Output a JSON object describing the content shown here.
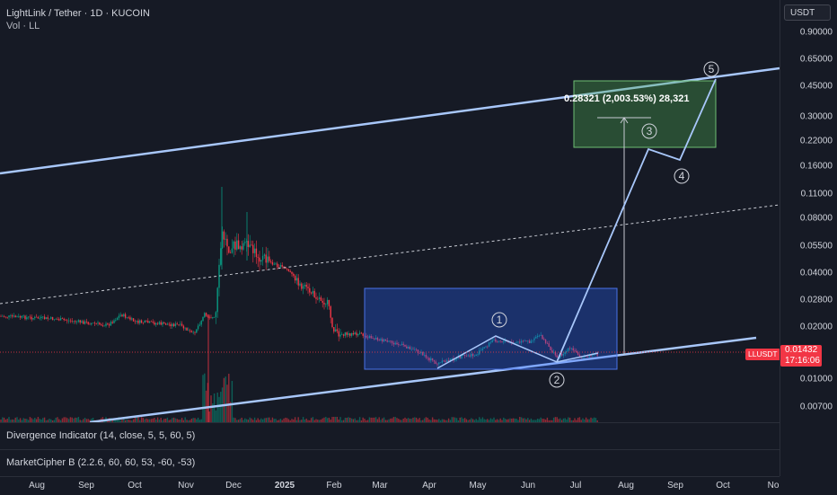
{
  "header": {
    "symbol_line": "LightLink / Tether · 1D · KUCOIN",
    "volume_line": "Vol · LL"
  },
  "price_axis": {
    "currency": "USDT",
    "ticks": [
      "0.90000",
      "0.65000",
      "0.45000",
      "0.30000",
      "0.22000",
      "0.16000",
      "0.11000",
      "0.08000",
      "0.05500",
      "0.04000",
      "0.02800",
      "0.02000",
      "0.01000",
      "0.00700"
    ],
    "last_price": "0.01432",
    "countdown": "17:16:06",
    "symbol_tag": "LLUSDT"
  },
  "time_axis": {
    "labels": [
      "Aug",
      "Sep",
      "Oct",
      "Nov",
      "Dec",
      "2025",
      "Feb",
      "Mar",
      "Apr",
      "May",
      "Jun",
      "Jul",
      "Aug",
      "Sep",
      "Oct",
      "No"
    ]
  },
  "measure": {
    "label": "0.28321 (2,003.53%) 28,321"
  },
  "waves": [
    "1",
    "2",
    "3",
    "4",
    "5"
  ],
  "indicators": {
    "divergence": "Divergence Indicator (14, close, 5, 5, 60, 5)",
    "marketcipher": "MarketCipher B (2.2.6, 60, 60, 53, -60, -53)"
  },
  "colors": {
    "background": "#161a25",
    "channel_line": "#a8c7fa",
    "up_candle": "#089981",
    "down_candle": "#f23645",
    "range_box": "#2962ff",
    "target_box": "#4caf50",
    "last_price": "#f23645"
  }
}
